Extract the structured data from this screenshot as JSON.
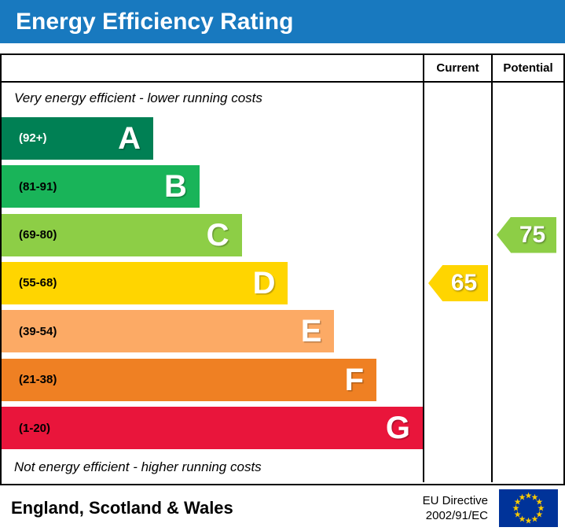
{
  "title": "Energy Efficiency Rating",
  "header": {
    "current": "Current",
    "potential": "Potential"
  },
  "notes": {
    "top": "Very energy efficient - lower running costs",
    "bottom": "Not energy efficient - higher running costs"
  },
  "bands": [
    {
      "letter": "A",
      "range": "(92+)",
      "color": "#008054",
      "width_pct": 36,
      "range_color": "#ffffff"
    },
    {
      "letter": "B",
      "range": "(81-91)",
      "color": "#19b459",
      "width_pct": 47,
      "range_color": "#000000"
    },
    {
      "letter": "C",
      "range": "(69-80)",
      "color": "#8dce46",
      "width_pct": 57,
      "range_color": "#000000"
    },
    {
      "letter": "D",
      "range": "(55-68)",
      "color": "#ffd500",
      "width_pct": 68,
      "range_color": "#000000"
    },
    {
      "letter": "E",
      "range": "(39-54)",
      "color": "#fcaa65",
      "width_pct": 79,
      "range_color": "#000000"
    },
    {
      "letter": "F",
      "range": "(21-38)",
      "color": "#ef8023",
      "width_pct": 89,
      "range_color": "#000000"
    },
    {
      "letter": "G",
      "range": "(1-20)",
      "color": "#e9153b",
      "width_pct": 100,
      "range_color": "#000000"
    }
  ],
  "ratings": {
    "current": {
      "value": "65",
      "band": "D",
      "color": "#ffd500"
    },
    "potential": {
      "value": "75",
      "band": "C",
      "color": "#8dce46"
    }
  },
  "footer": {
    "region": "England, Scotland & Wales",
    "directive_line1": "EU Directive",
    "directive_line2": "2002/91/EC",
    "flag": {
      "bg": "#003399",
      "star": "#ffcc00"
    }
  },
  "colors": {
    "title_bg": "#1879bf",
    "title_text": "#ffffff"
  },
  "chart_data": {
    "type": "bar",
    "title": "Energy Efficiency Rating",
    "categories": [
      "A (92+)",
      "B (81-91)",
      "C (69-80)",
      "D (55-68)",
      "E (39-54)",
      "F (21-38)",
      "G (1-20)"
    ],
    "values": [
      36,
      47,
      57,
      68,
      79,
      89,
      100
    ],
    "value_unit": "bar length as percent of band area width (decorative scale)",
    "series": [
      {
        "name": "Current",
        "value": 65,
        "band": "D"
      },
      {
        "name": "Potential",
        "value": 75,
        "band": "C"
      }
    ],
    "xlabel": "",
    "ylabel": "",
    "legend_position": "right-columns",
    "grid": false,
    "annotations": [
      "Very energy efficient - lower running costs",
      "Not energy efficient - higher running costs"
    ]
  }
}
